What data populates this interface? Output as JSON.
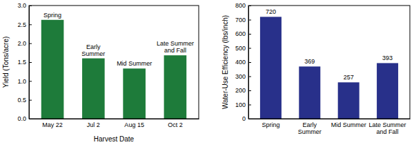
{
  "chart_data": [
    {
      "type": "bar",
      "categories": [
        "May 22",
        "Jul 2",
        "Aug 15",
        "Oct 2"
      ],
      "values": [
        2.62,
        1.6,
        1.33,
        1.68
      ],
      "color": "#1e7b3a",
      "x_label": "Harvest Date",
      "y_label": "Yield (Tons/acre)",
      "annotations": [
        "Spring",
        "Early Summer",
        "Mid Summer",
        "Late Summer and Fall"
      ],
      "ylim": [
        0,
        3
      ],
      "yticks": [
        {
          "value": 0,
          "label": "0.0"
        },
        0.5,
        {
          "value": 1,
          "label": "1.0"
        },
        1.5,
        {
          "value": 2,
          "label": "2.0"
        },
        2.5,
        {
          "value": 3,
          "label": "3.0"
        }
      ]
    },
    {
      "type": "bar",
      "categories": [
        "Spring",
        "Early Summer",
        "Mid Summer",
        "Late Summer and Fall"
      ],
      "values": [
        720,
        369,
        257,
        393
      ],
      "color": "#28308a",
      "y_label": "Water-Use Efficiency (lbs/inch)",
      "ylim": [
        0,
        800
      ],
      "yticks": [
        0,
        100,
        200,
        300,
        400,
        500,
        600,
        700,
        800
      ],
      "data_labels": true
    }
  ]
}
